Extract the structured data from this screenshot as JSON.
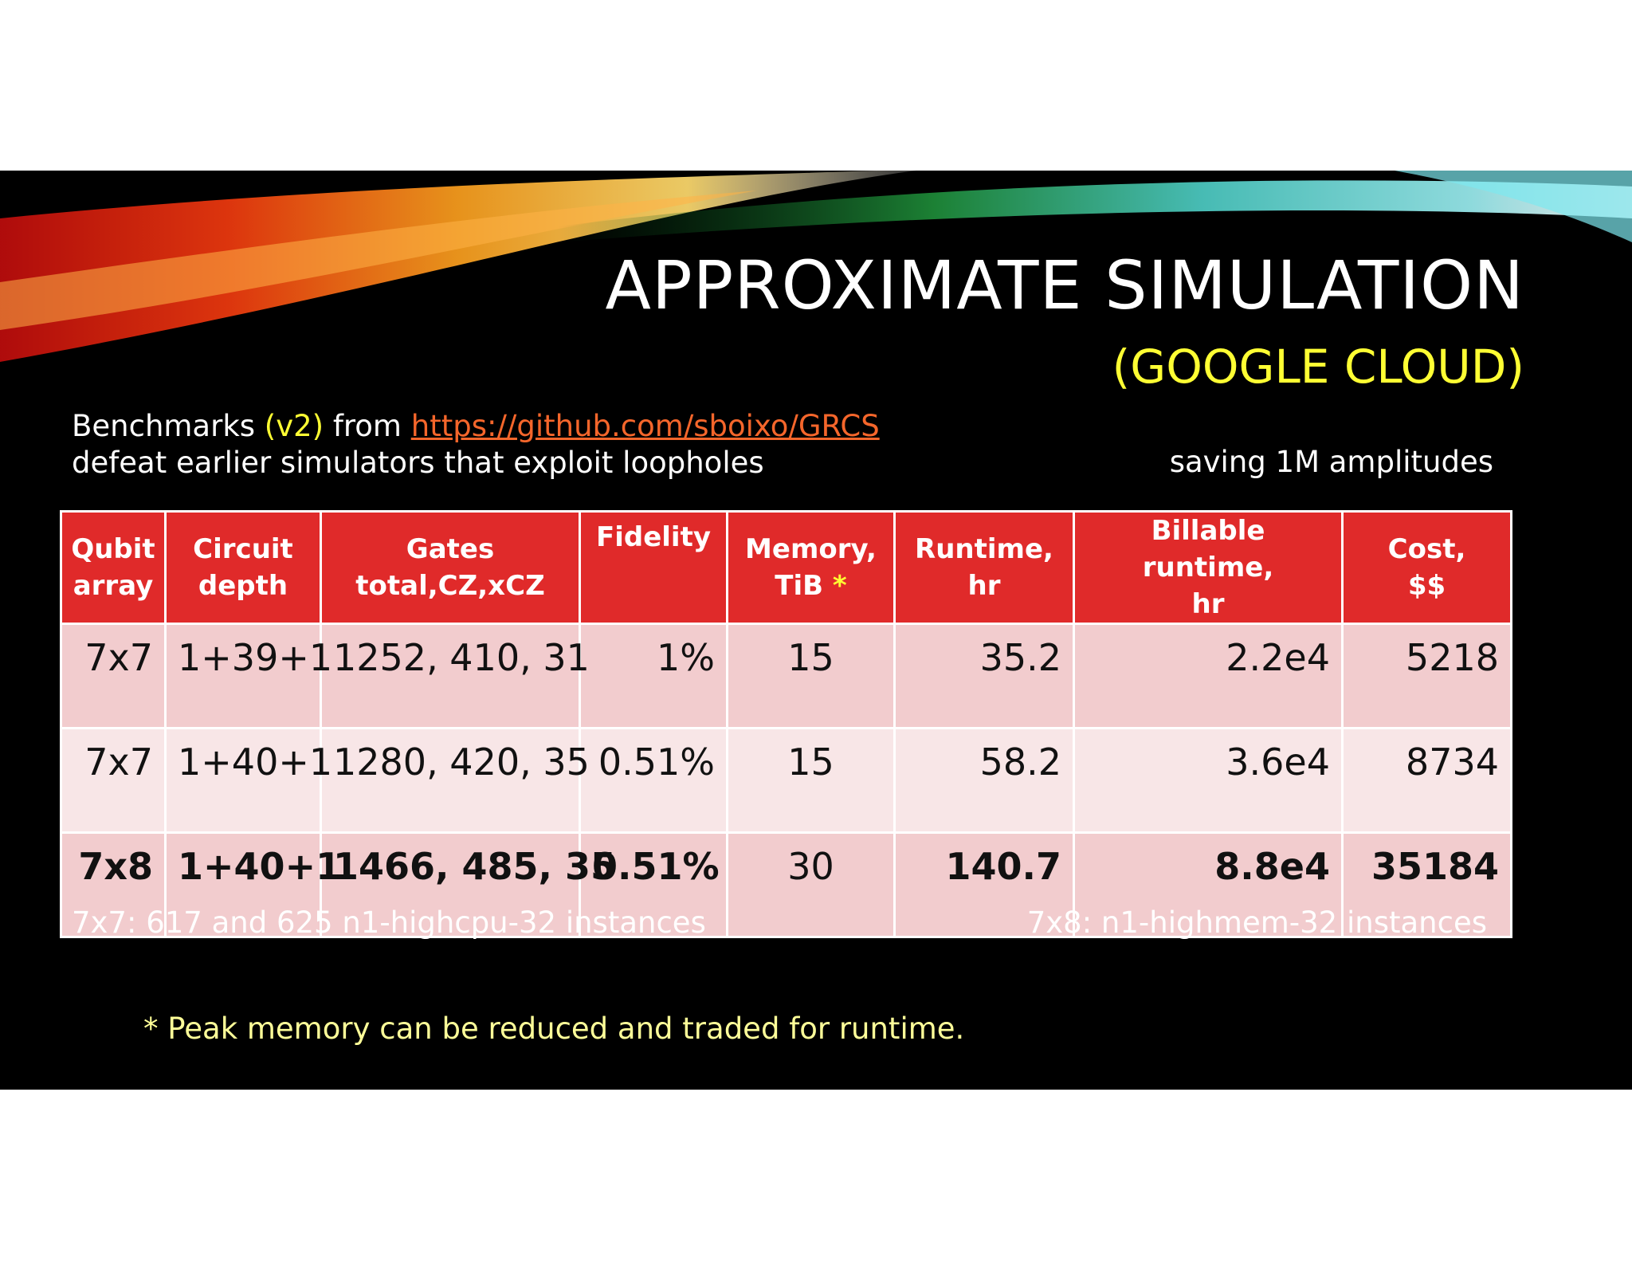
{
  "title": "APPROXIMATE SIMULATION",
  "subtitle": "(GOOGLE CLOUD)",
  "intro": {
    "line1_prefix": "Benchmarks ",
    "line1_version": "(v2)",
    "line1_mid": " from ",
    "link": "https://github.com/sboixo/GRCS",
    "line2": "defeat earlier simulators that exploit loopholes"
  },
  "saving_note": "saving  1M amplitudes",
  "table": {
    "headers": [
      {
        "line1": "Qubit",
        "line2": "array"
      },
      {
        "line1": "Circuit",
        "line2": "depth"
      },
      {
        "line1": "Gates",
        "line2": "total,CZ,xCZ"
      },
      {
        "line1": "Fidelity",
        "line2": ""
      },
      {
        "line1": "Memory,",
        "line2": "TiB",
        "marker": "*"
      },
      {
        "line1": "Runtime,",
        "line2": "hr"
      },
      {
        "line1": "Billable runtime,",
        "line2": "hr"
      },
      {
        "line1": "Cost,",
        "line2": "$$"
      }
    ],
    "rows": [
      {
        "qubit": "7x7",
        "depth": "1+39+1",
        "gates": "1252, 410, 31",
        "fidelity": "1%",
        "memory": "15",
        "runtime": "35.2",
        "billable": "2.2e4",
        "cost": "5218"
      },
      {
        "qubit": "7x7",
        "depth": "1+40+1",
        "gates": "1280, 420, 35",
        "fidelity": "0.51%",
        "memory": "15",
        "runtime": "58.2",
        "billable": "3.6e4",
        "cost": "8734"
      },
      {
        "qubit": "7x8",
        "depth": "1+40+1",
        "gates": "1466, 485, 35",
        "fidelity": "0.51%",
        "memory": "30",
        "runtime": "140.7",
        "billable": "8.8e4",
        "cost": "35184"
      }
    ]
  },
  "note_left": "7x7: 617 and 625 n1-highcpu-32 instances",
  "note_right": "7x8:  n1-highmem-32 instances",
  "footnote": "* Peak memory can be reduced and traded for runtime.",
  "colors": {
    "slide_background": "#000000",
    "header_red": "#e02a2a",
    "accent_yellow": "#ffff33",
    "link_orange": "#f5662b",
    "row_odd": "#f2ccce",
    "row_even": "#f8e6e7"
  }
}
